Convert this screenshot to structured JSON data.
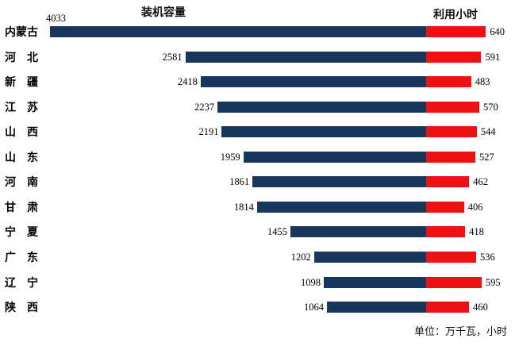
{
  "chart": {
    "title_left": "装机容量",
    "title_right": "利用小时",
    "unit_note": "单位：万千瓦，小时",
    "colors": {
      "capacity": "#17375D",
      "hours": "#EE1111"
    }
  },
  "chart_data": {
    "type": "bar",
    "orientation": "horizontal-diverging",
    "title_left": "装机容量",
    "title_right": "利用小时",
    "unit": "万千瓦，小时",
    "categories": [
      "内蒙古",
      "河北",
      "新疆",
      "江苏",
      "山西",
      "山东",
      "河南",
      "甘肃",
      "宁夏",
      "广东",
      "辽宁",
      "陕西"
    ],
    "categories_display": [
      "内蒙古",
      "河　北",
      "新　疆",
      "江　苏",
      "山　西",
      "山　东",
      "河　南",
      "甘　肃",
      "宁　夏",
      "广　东",
      "辽　宁",
      "陕　西"
    ],
    "series": [
      {
        "name": "装机容量",
        "side": "left",
        "color": "#17375D",
        "values": [
          4033,
          2581,
          2418,
          2237,
          2191,
          1959,
          1861,
          1814,
          1455,
          1202,
          1098,
          1064
        ]
      },
      {
        "name": "利用小时",
        "side": "right",
        "color": "#EE1111",
        "values": [
          640,
          591,
          483,
          570,
          544,
          527,
          462,
          406,
          418,
          536,
          595,
          460
        ]
      }
    ],
    "value_labels_visible": true,
    "grid": false,
    "legend": "none"
  }
}
